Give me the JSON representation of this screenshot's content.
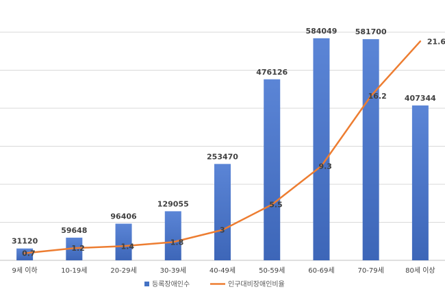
{
  "chart_data": {
    "type": "bar",
    "categories": [
      "9세 이하",
      "10-19세",
      "20-29세",
      "30-39세",
      "40-49세",
      "50-59세",
      "60-69세",
      "70-79세",
      "80세 이상"
    ],
    "series": [
      {
        "name": "등록장애인수",
        "type": "bar",
        "axis": "left",
        "color": "#4472C4",
        "values": [
          31120,
          59648,
          96406,
          129055,
          253470,
          476126,
          584049,
          581700,
          407344
        ],
        "labels": [
          "31120",
          "59648",
          "96406",
          "129055",
          "253470",
          "476126",
          "584049",
          "581700",
          "407344"
        ]
      },
      {
        "name": "인구대비장애인비율",
        "type": "line",
        "axis": "right",
        "color": "#ED7D31",
        "values": [
          0.7,
          1.2,
          1.4,
          1.8,
          3,
          5.5,
          9.3,
          16.2,
          21.6
        ],
        "labels": [
          "0.7",
          "1.2",
          "1.4",
          "1.8",
          "3",
          "5.5",
          "9.3",
          "16.2",
          "21.6"
        ]
      }
    ],
    "ylim_left": [
      0,
      600000
    ],
    "ylim_right": [
      0,
      22.5
    ],
    "grid": true,
    "legend_position": "bottom"
  },
  "colors": {
    "gridline": "#D9D9D9",
    "axis_line": "#BFBFBF",
    "background": "#FFFFFF"
  }
}
